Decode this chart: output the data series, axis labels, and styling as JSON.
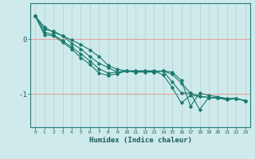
{
  "xlabel": "Humidex (Indice chaleur)",
  "bg_color": "#ceeaea",
  "line_color": "#1a7a6e",
  "grid_color_white": "#b8d8d8",
  "grid_color_red": "#e8a0a0",
  "xlim": [
    -0.5,
    23.5
  ],
  "ylim": [
    -1.6,
    0.65
  ],
  "yticks": [
    0,
    -1
  ],
  "xticks": [
    0,
    1,
    2,
    3,
    4,
    5,
    6,
    7,
    8,
    9,
    10,
    11,
    12,
    13,
    14,
    15,
    16,
    17,
    18,
    19,
    20,
    21,
    22,
    23
  ],
  "series": [
    [
      0.42,
      0.22,
      0.12,
      0.06,
      -0.02,
      -0.1,
      -0.2,
      -0.32,
      -0.48,
      -0.55,
      -0.58,
      -0.6,
      -0.6,
      -0.6,
      -0.58,
      -0.6,
      -0.75,
      -1.22,
      -0.98,
      -1.02,
      -1.05,
      -1.08,
      -1.08,
      -1.12
    ],
    [
      0.42,
      0.18,
      0.14,
      0.06,
      -0.08,
      -0.18,
      -0.32,
      -0.44,
      -0.52,
      -0.6,
      -0.58,
      -0.6,
      -0.59,
      -0.6,
      -0.58,
      -0.64,
      -0.8,
      -0.98,
      -1.28,
      -1.06,
      -1.07,
      -1.08,
      -1.08,
      -1.12
    ],
    [
      0.42,
      0.12,
      0.08,
      -0.03,
      -0.15,
      -0.27,
      -0.4,
      -0.54,
      -0.62,
      -0.6,
      -0.58,
      -0.58,
      -0.58,
      -0.58,
      -0.58,
      -0.78,
      -0.98,
      -0.98,
      -1.04,
      -1.06,
      -1.07,
      -1.1,
      -1.08,
      -1.12
    ],
    [
      0.42,
      0.08,
      0.06,
      -0.06,
      -0.18,
      -0.34,
      -0.46,
      -0.62,
      -0.66,
      -0.63,
      -0.58,
      -0.58,
      -0.58,
      -0.58,
      -0.65,
      -0.88,
      -1.16,
      -1.02,
      -1.04,
      -1.06,
      -1.07,
      -1.1,
      -1.08,
      -1.12
    ]
  ]
}
